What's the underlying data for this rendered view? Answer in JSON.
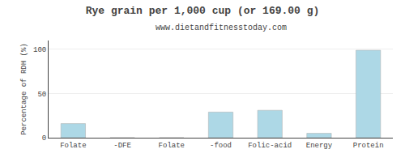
{
  "chart_data": {
    "type": "bar",
    "title": "Rye grain per 1,000 cup (or 169.00 g)",
    "subtitle": "www.dietandfitnesstoday.com",
    "categories": [
      "Folate",
      "-DFE",
      "Folate",
      "-food",
      "Folic-acid",
      "Energy",
      "Protein"
    ],
    "values": [
      16,
      0,
      0,
      29,
      31,
      5,
      99
    ],
    "color": "#add8e6",
    "ylabel": "Percentage of RDH (%)",
    "ylim": [
      0,
      110
    ],
    "yticks": [
      0,
      50,
      100
    ],
    "grid": true
  }
}
